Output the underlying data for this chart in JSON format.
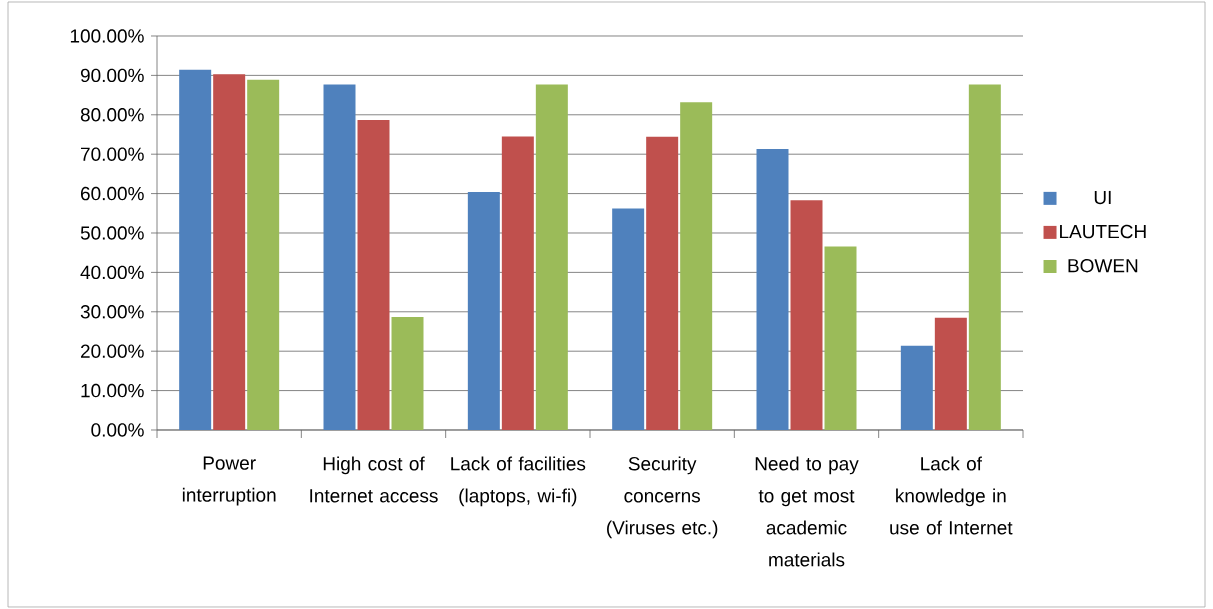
{
  "chart_data": {
    "type": "bar",
    "categories": [
      "Power interruption",
      "High cost of Internet access",
      "Lack of facilities (laptops, wi-fi)",
      "Security concerns (Viruses etc.)",
      "Need to pay to get most academic materials",
      "Lack of knowledge in use of Internet"
    ],
    "series": [
      {
        "name": "UI",
        "color": "#4f81bd",
        "values": [
          91.4,
          87.7,
          60.4,
          56.2,
          71.3,
          21.4
        ]
      },
      {
        "name": "LAUTECH",
        "color": "#c0504d",
        "values": [
          90.3,
          78.7,
          74.5,
          74.4,
          58.3,
          28.5
        ]
      },
      {
        "name": "BOWEN",
        "color": "#9bbb59",
        "values": [
          88.9,
          28.7,
          87.7,
          83.2,
          46.6,
          87.7
        ]
      }
    ],
    "ylim": [
      0,
      100
    ],
    "yticks": [
      {
        "value": 0,
        "label": "0.00%"
      },
      {
        "value": 10,
        "label": "10.00%"
      },
      {
        "value": 20,
        "label": "20.00%"
      },
      {
        "value": 30,
        "label": "30.00%"
      },
      {
        "value": 40,
        "label": "40.00%"
      },
      {
        "value": 50,
        "label": "50.00%"
      },
      {
        "value": 60,
        "label": "60.00%"
      },
      {
        "value": 70,
        "label": "70.00%"
      },
      {
        "value": 80,
        "label": "80.00%"
      },
      {
        "value": 90,
        "label": "90.00%"
      },
      {
        "value": 100,
        "label": "100.00%"
      }
    ],
    "grid": "y",
    "legend": "right"
  }
}
